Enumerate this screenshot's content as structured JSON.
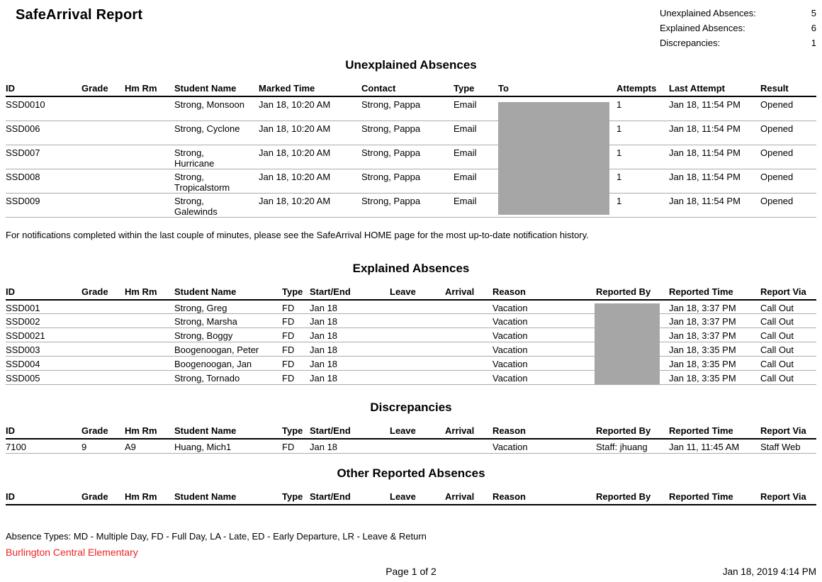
{
  "theme": {
    "redaction_color": "#a6a6a6",
    "school_color": "#ee2324",
    "rule_color": "#ababab"
  },
  "report": {
    "title": "SafeArrival Report",
    "summary": [
      {
        "label": "Unexplained Absences:",
        "value": "5"
      },
      {
        "label": "Explained Absences:",
        "value": "6"
      },
      {
        "label": "Discrepancies:",
        "value": "1"
      }
    ]
  },
  "unexplained": {
    "heading": "Unexplained Absences",
    "columns": [
      "ID",
      "Grade",
      "Hm Rm",
      "Student Name",
      "Marked Time",
      "Contact",
      "Type",
      "To",
      "Attempts",
      "Last Attempt",
      "Result"
    ],
    "rows": [
      [
        "SSD0010",
        "",
        "",
        "Strong, Monsoon",
        "Jan 18, 10:20 AM",
        "Strong, Pappa",
        "Email",
        "",
        "1",
        "Jan 18, 11:54 PM",
        "Opened"
      ],
      [
        "SSD006",
        "",
        "",
        "Strong, Cyclone",
        "Jan 18, 10:20 AM",
        "Strong, Pappa",
        "Email",
        "",
        "1",
        "Jan 18, 11:54 PM",
        "Opened"
      ],
      [
        "SSD007",
        "",
        "",
        "Strong, Hurricane",
        "Jan 18, 10:20 AM",
        "Strong, Pappa",
        "Email",
        "",
        "1",
        "Jan 18, 11:54 PM",
        "Opened"
      ],
      [
        "SSD008",
        "",
        "",
        "Strong, Tropicalstorm",
        "Jan 18, 10:20 AM",
        "Strong, Pappa",
        "Email",
        "",
        "1",
        "Jan 18, 11:54 PM",
        "Opened"
      ],
      [
        "SSD009",
        "",
        "",
        "Strong, Galewinds",
        "Jan 18, 10:20 AM",
        "Strong, Pappa",
        "Email",
        "",
        "1",
        "Jan 18, 11:54 PM",
        "Opened"
      ]
    ],
    "note": "For notifications completed within the last couple of minutes, please see the SafeArrival HOME page for the most up-to-date notification history."
  },
  "explained": {
    "heading": "Explained Absences",
    "columns": [
      "ID",
      "Grade",
      "Hm Rm",
      "Student Name",
      "Type",
      "Start/End",
      "Leave",
      "Arrival",
      "Reason",
      "Reported By",
      "Reported Time",
      "Report Via"
    ],
    "rows": [
      [
        "SSD001",
        "",
        "",
        "Strong, Greg",
        "FD",
        "Jan 18",
        "",
        "",
        "Vacation",
        "",
        "Jan 18, 3:37 PM",
        "Call Out"
      ],
      [
        "SSD002",
        "",
        "",
        "Strong, Marsha",
        "FD",
        "Jan 18",
        "",
        "",
        "Vacation",
        "",
        "Jan 18, 3:37 PM",
        "Call Out"
      ],
      [
        "SSD0021",
        "",
        "",
        "Strong, Boggy",
        "FD",
        "Jan 18",
        "",
        "",
        "Vacation",
        "",
        "Jan 18, 3:37 PM",
        "Call Out"
      ],
      [
        "SSD003",
        "",
        "",
        "Boogenoogan, Peter",
        "FD",
        "Jan 18",
        "",
        "",
        "Vacation",
        "",
        "Jan 18, 3:35 PM",
        "Call Out"
      ],
      [
        "SSD004",
        "",
        "",
        "Boogenoogan, Jan",
        "FD",
        "Jan 18",
        "",
        "",
        "Vacation",
        "",
        "Jan 18, 3:35 PM",
        "Call Out"
      ],
      [
        "SSD005",
        "",
        "",
        "Strong, Tornado",
        "FD",
        "Jan 18",
        "",
        "",
        "Vacation",
        "",
        "Jan 18, 3:35 PM",
        "Call Out"
      ]
    ]
  },
  "discrepancies": {
    "heading": "Discrepancies",
    "columns": [
      "ID",
      "Grade",
      "Hm Rm",
      "Student Name",
      "Type",
      "Start/End",
      "Leave",
      "Arrival",
      "Reason",
      "Reported By",
      "Reported Time",
      "Report Via"
    ],
    "rows": [
      [
        "7100",
        "9",
        "A9",
        "Huang, Mich1",
        "FD",
        "Jan 18",
        "",
        "",
        "Vacation",
        "Staff: jhuang",
        "Jan 11, 11:45 AM",
        "Staff Web"
      ]
    ]
  },
  "other": {
    "heading": "Other Reported Absences",
    "columns": [
      "ID",
      "Grade",
      "Hm Rm",
      "Student Name",
      "Type",
      "Start/End",
      "Leave",
      "Arrival",
      "Reason",
      "Reported By",
      "Reported Time",
      "Report Via"
    ],
    "rows": []
  },
  "footer": {
    "absence_types": "Absence Types: MD - Multiple Day, FD - Full Day, LA - Late, ED - Early Departure, LR - Leave & Return",
    "school": "Burlington Central Elementary",
    "page": "Page 1 of 2",
    "timestamp": "Jan 18, 2019 4:14 PM"
  }
}
